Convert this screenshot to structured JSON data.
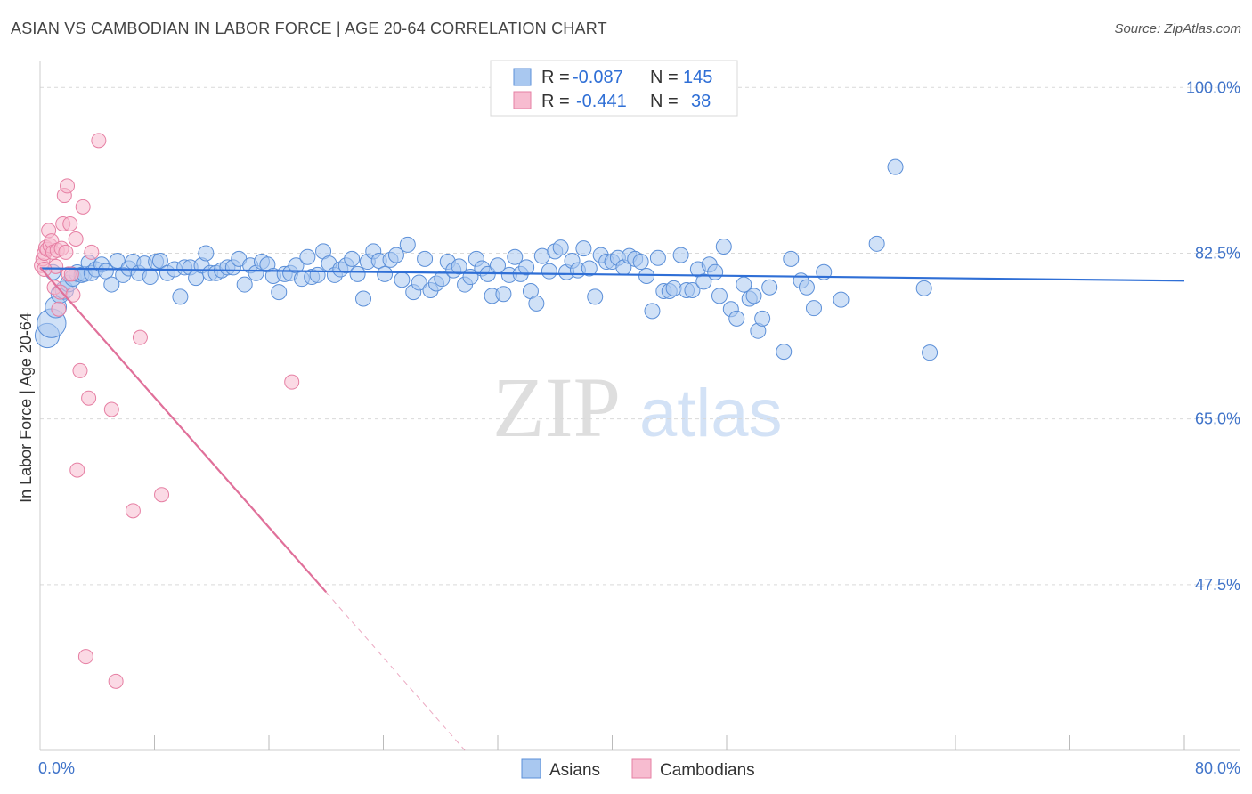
{
  "title": "ASIAN VS CAMBODIAN IN LABOR FORCE | AGE 20-64 CORRELATION CHART",
  "source": "Source: ZipAtlas.com",
  "watermark": {
    "zip": "ZIP",
    "atlas": "atlas"
  },
  "colors": {
    "asian_fill": "#a9c8f0",
    "asian_stroke": "#5b8fd8",
    "asian_line": "#2f6fd6",
    "cambodian_fill": "#f7bcd0",
    "cambodian_stroke": "#e67fa3",
    "cambodian_line": "#e0709a",
    "tick_text": "#3f73c9",
    "grid": "#d9d9d9"
  },
  "legend": {
    "asians": {
      "r_label": "R =",
      "r_value": "-0.087",
      "n_label": "N =",
      "n_value": "145"
    },
    "cambodians": {
      "r_label": "R =",
      "r_value": "-0.441",
      "n_label": "N =",
      "n_value": "38"
    }
  },
  "chart_data": {
    "type": "scatter",
    "title": "ASIAN VS CAMBODIAN IN LABOR FORCE | AGE 20-64 CORRELATION CHART",
    "xlabel": "",
    "ylabel": "In Labor Force | Age 20-64",
    "xlim": [
      0,
      80
    ],
    "ylim": [
      30,
      102
    ],
    "x_tick_labels": [
      "0.0%",
      "80.0%"
    ],
    "y_ticks": [
      100.0,
      82.5,
      65.0,
      47.5
    ],
    "y_tick_labels": [
      "100.0%",
      "82.5%",
      "65.0%",
      "47.5%"
    ],
    "grid": true,
    "legend_position": "top-center",
    "series": [
      {
        "name": "Asians",
        "r": -0.087,
        "n": 145,
        "trendline": {
          "x": [
            0,
            80
          ],
          "y": [
            80.9,
            79.6
          ]
        },
        "points": [
          [
            0.5,
            73.8,
            1.6
          ],
          [
            0.8,
            75.1,
            1.9
          ],
          [
            1.1,
            76.8,
            1.4
          ],
          [
            1.4,
            78.2,
            1.2
          ],
          [
            1.7,
            78.6,
            1.2
          ],
          [
            2.0,
            79.3,
            1.1
          ],
          [
            2.3,
            79.9,
            1.1
          ],
          [
            2.6,
            80.4,
            1.1
          ],
          [
            2.9,
            80.2,
            1.0
          ],
          [
            3.1,
            80.3,
            1.0
          ],
          [
            3.4,
            81.5,
            1.0
          ],
          [
            3.6,
            80.4,
            1.0
          ],
          [
            3.9,
            80.8,
            1.0
          ],
          [
            4.3,
            81.3,
            1.0
          ],
          [
            4.6,
            80.6,
            1.0
          ],
          [
            5.0,
            79.2,
            1.0
          ],
          [
            5.4,
            81.7,
            1.0
          ],
          [
            5.8,
            80.2,
            1.0
          ],
          [
            6.2,
            80.9,
            1.0
          ],
          [
            6.5,
            81.6,
            1.0
          ],
          [
            6.9,
            80.4,
            1.0
          ],
          [
            7.3,
            81.4,
            1.0
          ],
          [
            7.7,
            80.0,
            1.0
          ],
          [
            8.1,
            81.6,
            1.0
          ],
          [
            8.4,
            81.7,
            1.0
          ],
          [
            8.9,
            80.4,
            1.0
          ],
          [
            9.4,
            80.8,
            1.0
          ],
          [
            9.8,
            77.9,
            1.0
          ],
          [
            10.1,
            81.0,
            1.0
          ],
          [
            10.5,
            81.0,
            1.0
          ],
          [
            10.9,
            79.9,
            1.0
          ],
          [
            11.3,
            81.2,
            1.0
          ],
          [
            11.6,
            82.5,
            1.0
          ],
          [
            11.9,
            80.4,
            1.0
          ],
          [
            12.3,
            80.4,
            1.0
          ],
          [
            12.7,
            80.7,
            1.0
          ],
          [
            13.1,
            81.0,
            1.0
          ],
          [
            13.5,
            81.0,
            1.0
          ],
          [
            13.9,
            81.9,
            1.0
          ],
          [
            14.3,
            79.2,
            1.0
          ],
          [
            14.7,
            81.2,
            1.0
          ],
          [
            15.1,
            80.4,
            1.0
          ],
          [
            15.5,
            81.6,
            1.0
          ],
          [
            15.9,
            81.3,
            1.0
          ],
          [
            16.3,
            80.1,
            1.0
          ],
          [
            16.7,
            78.4,
            1.0
          ],
          [
            17.1,
            80.3,
            1.0
          ],
          [
            17.5,
            80.4,
            1.0
          ],
          [
            17.9,
            81.2,
            1.0
          ],
          [
            18.3,
            79.8,
            1.0
          ],
          [
            18.7,
            82.1,
            1.0
          ],
          [
            19.0,
            80.0,
            1.0
          ],
          [
            19.4,
            80.2,
            1.0
          ],
          [
            19.8,
            82.7,
            1.0
          ],
          [
            20.2,
            81.4,
            1.0
          ],
          [
            20.6,
            80.2,
            1.0
          ],
          [
            21.0,
            80.8,
            1.0
          ],
          [
            21.4,
            81.2,
            1.0
          ],
          [
            21.8,
            81.9,
            1.0
          ],
          [
            22.2,
            80.3,
            1.0
          ],
          [
            22.6,
            77.7,
            1.0
          ],
          [
            22.9,
            81.6,
            1.0
          ],
          [
            23.3,
            82.7,
            1.0
          ],
          [
            23.7,
            81.7,
            1.0
          ],
          [
            24.1,
            80.3,
            1.0
          ],
          [
            24.5,
            81.8,
            1.0
          ],
          [
            24.9,
            82.3,
            1.0
          ],
          [
            25.3,
            79.7,
            1.0
          ],
          [
            25.7,
            83.4,
            1.0
          ],
          [
            26.1,
            78.4,
            1.0
          ],
          [
            26.5,
            79.4,
            1.0
          ],
          [
            26.9,
            81.9,
            1.0
          ],
          [
            27.3,
            78.6,
            1.0
          ],
          [
            27.7,
            79.3,
            1.0
          ],
          [
            28.1,
            79.8,
            1.0
          ],
          [
            28.5,
            81.6,
            1.0
          ],
          [
            28.9,
            80.7,
            1.0
          ],
          [
            29.3,
            81.1,
            1.0
          ],
          [
            29.7,
            79.2,
            1.0
          ],
          [
            30.1,
            80.0,
            1.0
          ],
          [
            30.5,
            81.9,
            1.0
          ],
          [
            30.9,
            80.9,
            1.0
          ],
          [
            31.3,
            80.3,
            1.0
          ],
          [
            31.6,
            78.0,
            1.0
          ],
          [
            32.0,
            81.2,
            1.0
          ],
          [
            32.4,
            78.2,
            1.0
          ],
          [
            32.8,
            80.2,
            1.0
          ],
          [
            33.2,
            82.1,
            1.0
          ],
          [
            33.6,
            80.3,
            1.0
          ],
          [
            34.0,
            81.0,
            1.0
          ],
          [
            34.3,
            78.5,
            1.0
          ],
          [
            34.7,
            77.2,
            1.0
          ],
          [
            35.1,
            82.2,
            1.0
          ],
          [
            35.6,
            80.6,
            1.0
          ],
          [
            36.0,
            82.7,
            1.0
          ],
          [
            36.4,
            83.1,
            1.0
          ],
          [
            36.8,
            80.5,
            1.0
          ],
          [
            37.2,
            81.7,
            1.0
          ],
          [
            37.6,
            80.7,
            1.0
          ],
          [
            38.0,
            83.0,
            1.0
          ],
          [
            38.4,
            80.9,
            1.0
          ],
          [
            38.8,
            77.9,
            1.0
          ],
          [
            39.2,
            82.3,
            1.0
          ],
          [
            39.6,
            81.6,
            1.0
          ],
          [
            40.0,
            81.6,
            1.0
          ],
          [
            40.4,
            82.0,
            1.0
          ],
          [
            40.8,
            81.0,
            1.0
          ],
          [
            41.2,
            82.2,
            1.0
          ],
          [
            41.6,
            81.9,
            1.0
          ],
          [
            42.0,
            81.6,
            1.0
          ],
          [
            42.4,
            80.1,
            1.0
          ],
          [
            42.8,
            76.4,
            1.0
          ],
          [
            43.2,
            82.0,
            1.0
          ],
          [
            43.6,
            78.5,
            1.0
          ],
          [
            44.0,
            78.5,
            1.0
          ],
          [
            44.3,
            78.8,
            1.0
          ],
          [
            44.8,
            82.3,
            1.0
          ],
          [
            45.2,
            78.6,
            1.0
          ],
          [
            45.6,
            78.6,
            1.0
          ],
          [
            46.0,
            80.8,
            1.0
          ],
          [
            46.4,
            79.5,
            1.0
          ],
          [
            46.8,
            81.3,
            1.0
          ],
          [
            47.2,
            80.5,
            1.0
          ],
          [
            47.5,
            78.0,
            1.0
          ],
          [
            47.8,
            83.2,
            1.0
          ],
          [
            48.3,
            76.6,
            1.0
          ],
          [
            48.7,
            75.6,
            1.0
          ],
          [
            49.2,
            79.2,
            1.0
          ],
          [
            49.6,
            77.7,
            1.0
          ],
          [
            49.9,
            78.0,
            1.0
          ],
          [
            50.2,
            74.3,
            1.0
          ],
          [
            50.5,
            75.6,
            1.0
          ],
          [
            51.0,
            78.9,
            1.0
          ],
          [
            52.0,
            72.1,
            1.0
          ],
          [
            52.5,
            81.9,
            1.0
          ],
          [
            53.2,
            79.6,
            1.0
          ],
          [
            53.6,
            78.9,
            1.0
          ],
          [
            54.1,
            76.7,
            1.0
          ],
          [
            54.8,
            80.5,
            1.0
          ],
          [
            56.0,
            77.6,
            1.0
          ],
          [
            58.5,
            83.5,
            1.0
          ],
          [
            59.8,
            91.6,
            1.0
          ],
          [
            61.8,
            78.8,
            1.0
          ],
          [
            62.2,
            72.0,
            1.0
          ],
          [
            0.9,
            80.5,
            1.0
          ]
        ]
      },
      {
        "name": "Cambodians",
        "r": -0.441,
        "n": 38,
        "trendline": {
          "x": [
            0,
            20
          ],
          "y": [
            81.0,
            46.7
          ]
        },
        "trendline_extension": {
          "x": [
            20,
            29.7
          ],
          "y": [
            46.7,
            30.0
          ]
        },
        "points": [
          [
            0.1,
            81.2
          ],
          [
            0.2,
            81.9
          ],
          [
            0.3,
            82.5
          ],
          [
            0.4,
            83.1
          ],
          [
            0.5,
            82.9
          ],
          [
            0.6,
            84.9
          ],
          [
            0.7,
            83.3
          ],
          [
            0.8,
            83.8
          ],
          [
            0.9,
            82.6
          ],
          [
            1.0,
            78.9
          ],
          [
            1.1,
            81.1
          ],
          [
            1.2,
            82.8
          ],
          [
            1.3,
            76.6
          ],
          [
            1.4,
            78.4
          ],
          [
            1.5,
            83.0
          ],
          [
            1.6,
            85.6
          ],
          [
            1.7,
            88.6
          ],
          [
            1.8,
            82.6
          ],
          [
            1.9,
            89.6
          ],
          [
            2.0,
            80.3
          ],
          [
            2.1,
            85.6
          ],
          [
            2.2,
            80.3
          ],
          [
            2.3,
            78.1
          ],
          [
            2.5,
            84.0
          ],
          [
            2.6,
            59.6
          ],
          [
            2.8,
            70.1
          ],
          [
            3.0,
            87.4
          ],
          [
            3.2,
            39.9
          ],
          [
            3.4,
            67.2
          ],
          [
            3.6,
            82.6
          ],
          [
            4.1,
            94.4
          ],
          [
            5.0,
            66.0
          ],
          [
            5.3,
            37.3
          ],
          [
            6.5,
            55.3
          ],
          [
            7.0,
            73.6
          ],
          [
            8.5,
            57.0
          ],
          [
            17.6,
            68.9
          ],
          [
            0.3,
            80.8
          ]
        ]
      }
    ]
  }
}
